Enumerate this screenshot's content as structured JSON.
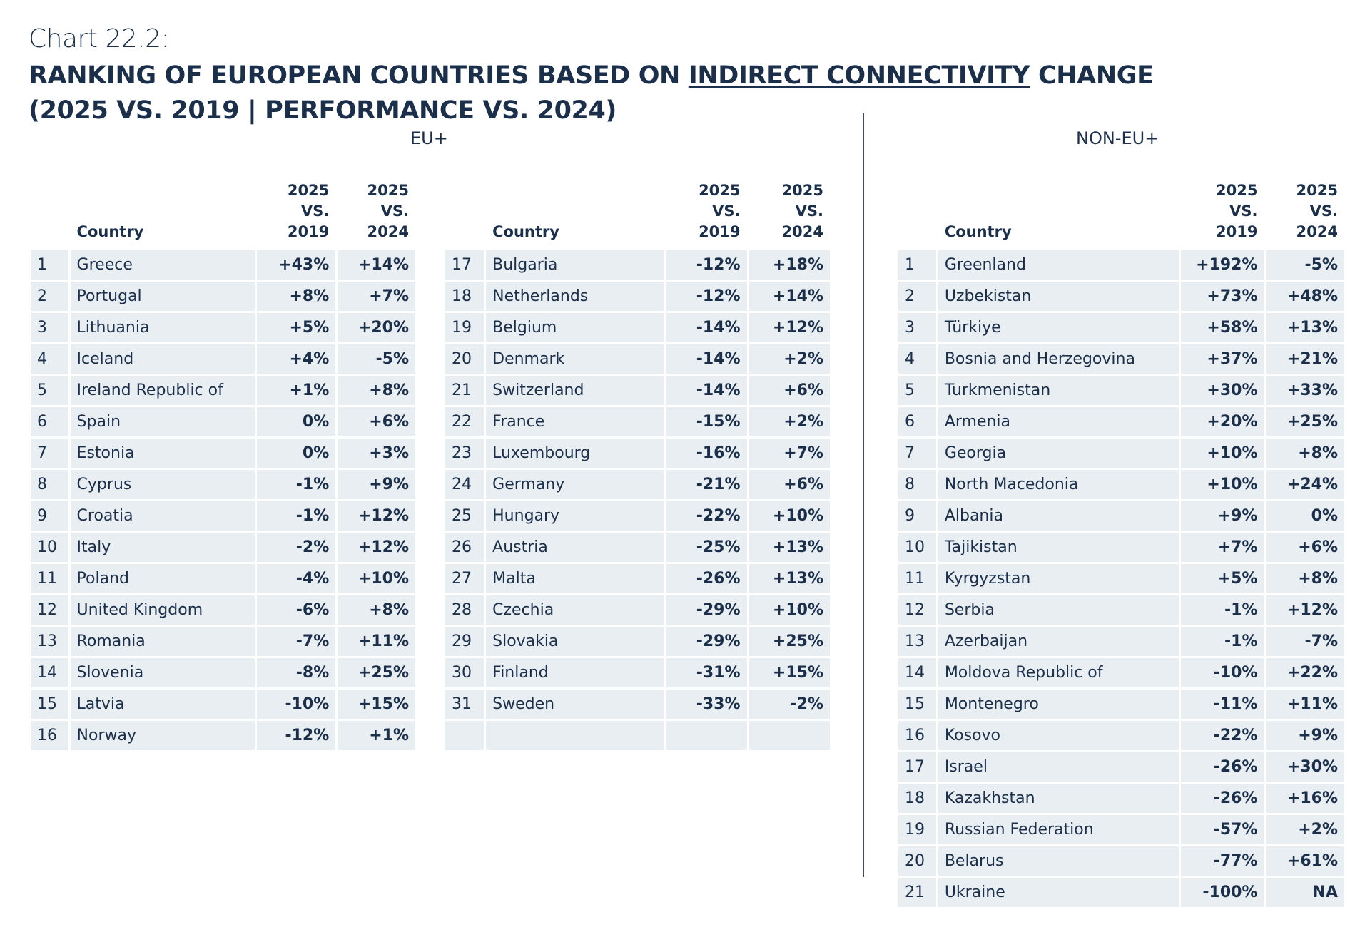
{
  "header": {
    "chart_label": "Chart 22.2:",
    "title_line1_prefix": "RANKING OF EUROPEAN COUNTRIES BASED ON ",
    "title_line1_underlined": "INDIRECT CONNECTIVITY",
    "title_line1_suffix": " CHANGE",
    "title_line2": "(2025 VS. 2019 | PERFORMANCE VS. 2024)"
  },
  "colors": {
    "text": "#1b2f4b",
    "positive": "#5cb97c",
    "cell_bg": "#e8eef1",
    "divider": "#3b4c63"
  },
  "columns": {
    "country": "Country",
    "vs2019_line1": "2025",
    "vs2019_line2": "VS. 2019",
    "vs2024_line1": "2025",
    "vs2024_line2": "VS. 2024"
  },
  "chart_data": {
    "type": "table",
    "sections": [
      {
        "title": "EU+",
        "rows": [
          {
            "rank": 1,
            "country": "Greece",
            "vs2019": "+43%",
            "vs2024": "+14%"
          },
          {
            "rank": 2,
            "country": "Portugal",
            "vs2019": "+8%",
            "vs2024": "+7%"
          },
          {
            "rank": 3,
            "country": "Lithuania",
            "vs2019": "+5%",
            "vs2024": "+20%"
          },
          {
            "rank": 4,
            "country": "Iceland",
            "vs2019": "+4%",
            "vs2024": "-5%"
          },
          {
            "rank": 5,
            "country": "Ireland Republic of",
            "vs2019": "+1%",
            "vs2024": "+8%"
          },
          {
            "rank": 6,
            "country": "Spain",
            "vs2019": "0%",
            "vs2024": "+6%"
          },
          {
            "rank": 7,
            "country": "Estonia",
            "vs2019": "0%",
            "vs2024": "+3%"
          },
          {
            "rank": 8,
            "country": "Cyprus",
            "vs2019": "-1%",
            "vs2024": "+9%"
          },
          {
            "rank": 9,
            "country": "Croatia",
            "vs2019": "-1%",
            "vs2024": "+12%"
          },
          {
            "rank": 10,
            "country": "Italy",
            "vs2019": "-2%",
            "vs2024": "+12%"
          },
          {
            "rank": 11,
            "country": "Poland",
            "vs2019": "-4%",
            "vs2024": "+10%"
          },
          {
            "rank": 12,
            "country": "United Kingdom",
            "vs2019": "-6%",
            "vs2024": "+8%"
          },
          {
            "rank": 13,
            "country": "Romania",
            "vs2019": "-7%",
            "vs2024": "+11%"
          },
          {
            "rank": 14,
            "country": "Slovenia",
            "vs2019": "-8%",
            "vs2024": "+25%"
          },
          {
            "rank": 15,
            "country": "Latvia",
            "vs2019": "-10%",
            "vs2024": "+15%"
          },
          {
            "rank": 16,
            "country": "Norway",
            "vs2019": "-12%",
            "vs2024": "+1%"
          },
          {
            "rank": 17,
            "country": "Bulgaria",
            "vs2019": "-12%",
            "vs2024": "+18%"
          },
          {
            "rank": 18,
            "country": "Netherlands",
            "vs2019": "-12%",
            "vs2024": "+14%"
          },
          {
            "rank": 19,
            "country": "Belgium",
            "vs2019": "-14%",
            "vs2024": "+12%"
          },
          {
            "rank": 20,
            "country": "Denmark",
            "vs2019": "-14%",
            "vs2024": "+2%"
          },
          {
            "rank": 21,
            "country": "Switzerland",
            "vs2019": "-14%",
            "vs2024": "+6%"
          },
          {
            "rank": 22,
            "country": "France",
            "vs2019": "-15%",
            "vs2024": "+2%"
          },
          {
            "rank": 23,
            "country": "Luxembourg",
            "vs2019": "-16%",
            "vs2024": "+7%"
          },
          {
            "rank": 24,
            "country": "Germany",
            "vs2019": "-21%",
            "vs2024": "+6%"
          },
          {
            "rank": 25,
            "country": "Hungary",
            "vs2019": "-22%",
            "vs2024": "+10%"
          },
          {
            "rank": 26,
            "country": "Austria",
            "vs2019": "-25%",
            "vs2024": "+13%"
          },
          {
            "rank": 27,
            "country": "Malta",
            "vs2019": "-26%",
            "vs2024": "+13%"
          },
          {
            "rank": 28,
            "country": "Czechia",
            "vs2019": "-29%",
            "vs2024": "+10%"
          },
          {
            "rank": 29,
            "country": "Slovakia",
            "vs2019": "-29%",
            "vs2024": "+25%"
          },
          {
            "rank": 30,
            "country": "Finland",
            "vs2019": "-31%",
            "vs2024": "+15%"
          },
          {
            "rank": 31,
            "country": "Sweden",
            "vs2019": "-33%",
            "vs2024": "-2%"
          }
        ]
      },
      {
        "title": "NON-EU+",
        "rows": [
          {
            "rank": 1,
            "country": "Greenland",
            "vs2019": "+192%",
            "vs2024": "-5%"
          },
          {
            "rank": 2,
            "country": "Uzbekistan",
            "vs2019": "+73%",
            "vs2024": "+48%"
          },
          {
            "rank": 3,
            "country": "Türkiye",
            "vs2019": "+58%",
            "vs2024": "+13%"
          },
          {
            "rank": 4,
            "country": "Bosnia and Herzegovina",
            "vs2019": "+37%",
            "vs2024": "+21%"
          },
          {
            "rank": 5,
            "country": "Turkmenistan",
            "vs2019": "+30%",
            "vs2024": "+33%"
          },
          {
            "rank": 6,
            "country": "Armenia",
            "vs2019": "+20%",
            "vs2024": "+25%"
          },
          {
            "rank": 7,
            "country": "Georgia",
            "vs2019": "+10%",
            "vs2024": "+8%"
          },
          {
            "rank": 8,
            "country": "North Macedonia",
            "vs2019": "+10%",
            "vs2024": "+24%"
          },
          {
            "rank": 9,
            "country": "Albania",
            "vs2019": "+9%",
            "vs2024": "0%"
          },
          {
            "rank": 10,
            "country": "Tajikistan",
            "vs2019": "+7%",
            "vs2024": "+6%"
          },
          {
            "rank": 11,
            "country": "Kyrgyzstan",
            "vs2019": "+5%",
            "vs2024": "+8%"
          },
          {
            "rank": 12,
            "country": "Serbia",
            "vs2019": "-1%",
            "vs2024": "+12%"
          },
          {
            "rank": 13,
            "country": "Azerbaijan",
            "vs2019": "-1%",
            "vs2024": "-7%"
          },
          {
            "rank": 14,
            "country": "Moldova Republic of",
            "vs2019": "-10%",
            "vs2024": "+22%"
          },
          {
            "rank": 15,
            "country": "Montenegro",
            "vs2019": "-11%",
            "vs2024": "+11%"
          },
          {
            "rank": 16,
            "country": "Kosovo",
            "vs2019": "-22%",
            "vs2024": "+9%"
          },
          {
            "rank": 17,
            "country": "Israel",
            "vs2019": "-26%",
            "vs2024": "+30%"
          },
          {
            "rank": 18,
            "country": "Kazakhstan",
            "vs2019": "-26%",
            "vs2024": "+16%"
          },
          {
            "rank": 19,
            "country": "Russian Federation",
            "vs2019": "-57%",
            "vs2024": "+2%"
          },
          {
            "rank": 20,
            "country": "Belarus",
            "vs2019": "-77%",
            "vs2024": "+61%"
          },
          {
            "rank": 21,
            "country": "Ukraine",
            "vs2019": "-100%",
            "vs2024": "NA"
          }
        ]
      }
    ]
  }
}
